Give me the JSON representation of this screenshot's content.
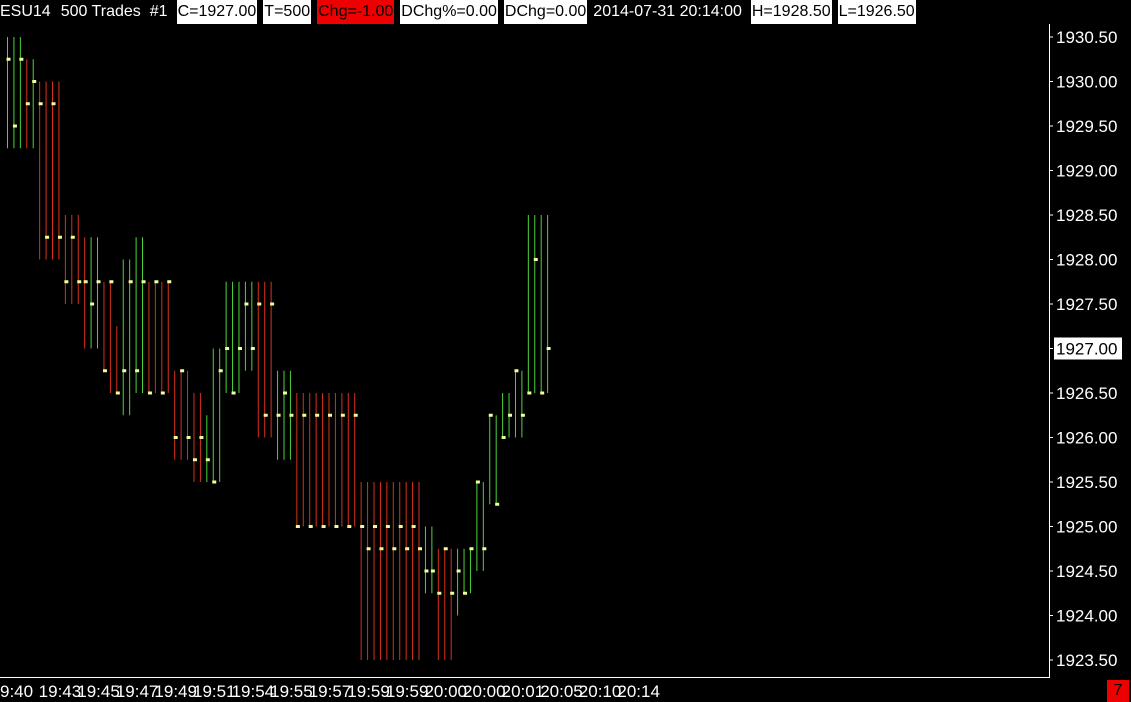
{
  "header": {
    "symbol": "ESU14",
    "bar_type": "500 Trades",
    "chart_number": "#1",
    "close": "C=1927.00",
    "trades": "T=500",
    "change": "Chg=-1.00",
    "daily_change_pct": "DChg%=0.00",
    "daily_change": "DChg=0.00",
    "datetime": "2014-07-31  20:14:00",
    "high": "H=1928.50",
    "low": "L=1926.50"
  },
  "counter": "7",
  "colors": {
    "background": "#000000",
    "up_bar": "#4cd43c",
    "down_bar": "#d8301a",
    "close_tick": "#f0ff9a",
    "price_box": "#ffffff",
    "alert_red": "#e00000"
  },
  "chart_data": {
    "type": "ohlc",
    "xlabel": "",
    "ylabel": "",
    "ylim": [
      1923.25,
      1930.75
    ],
    "y_ticks": [
      1930.5,
      1930.0,
      1929.5,
      1929.0,
      1928.5,
      1928.0,
      1927.5,
      1927.0,
      1926.5,
      1926.0,
      1925.5,
      1925.0,
      1924.5,
      1924.0,
      1923.5
    ],
    "y_tick_labels": [
      "1930.50",
      "1930.00",
      "1929.50",
      "1929.00",
      "1928.50",
      "1928.00",
      "1927.50",
      "1927.00",
      "1926.50",
      "1926.00",
      "1925.50",
      "1925.00",
      "1924.50",
      "1924.00",
      "1923.50"
    ],
    "current_price_label": "1927.00",
    "x_tick_labels": [
      {
        "bar": 0,
        "label": "9:40"
      },
      {
        "bar": 8,
        "label": "19:43"
      },
      {
        "bar": 14,
        "label": "19:45"
      },
      {
        "bar": 20,
        "label": "19:47"
      },
      {
        "bar": 26,
        "label": "19:49"
      },
      {
        "bar": 32,
        "label": "19:51"
      },
      {
        "bar": 38,
        "label": "19:54"
      },
      {
        "bar": 44,
        "label": "19:55"
      },
      {
        "bar": 50,
        "label": "19:57"
      },
      {
        "bar": 56,
        "label": "19:59"
      },
      {
        "bar": 62,
        "label": "19:59"
      },
      {
        "bar": 68,
        "label": "20:00"
      },
      {
        "bar": 74,
        "label": "20:00"
      },
      {
        "bar": 80,
        "label": "20:01"
      },
      {
        "bar": 86,
        "label": "20:05"
      },
      {
        "bar": 92,
        "label": "20:10"
      },
      {
        "bar": 98,
        "label": "20:14"
      }
    ],
    "bars": [
      {
        "h": 1930.5,
        "l": 1929.25,
        "c": 1930.25,
        "d": "up"
      },
      {
        "h": 1930.5,
        "l": 1929.25,
        "c": 1929.5,
        "d": "up"
      },
      {
        "h": 1930.5,
        "l": 1929.25,
        "c": 1930.25,
        "d": "up"
      },
      {
        "h": 1930.25,
        "l": 1929.25,
        "c": 1929.75,
        "d": "down"
      },
      {
        "h": 1930.25,
        "l": 1929.25,
        "c": 1930.0,
        "d": "up"
      },
      {
        "h": 1930.0,
        "l": 1928.0,
        "c": 1929.75,
        "d": "down"
      },
      {
        "h": 1930.0,
        "l": 1928.0,
        "c": 1928.25,
        "d": "down"
      },
      {
        "h": 1930.0,
        "l": 1928.0,
        "c": 1929.75,
        "d": "down"
      },
      {
        "h": 1930.0,
        "l": 1928.0,
        "c": 1928.25,
        "d": "down"
      },
      {
        "h": 1928.5,
        "l": 1927.5,
        "c": 1927.75,
        "d": "down"
      },
      {
        "h": 1928.5,
        "l": 1927.5,
        "c": 1928.25,
        "d": "down"
      },
      {
        "h": 1928.5,
        "l": 1927.5,
        "c": 1927.75,
        "d": "down"
      },
      {
        "h": 1928.25,
        "l": 1927.0,
        "c": 1927.75,
        "d": "down"
      },
      {
        "h": 1928.25,
        "l": 1927.0,
        "c": 1927.5,
        "d": "up"
      },
      {
        "h": 1928.25,
        "l": 1927.0,
        "c": 1927.75,
        "d": "up"
      },
      {
        "h": 1927.75,
        "l": 1926.75,
        "c": 1926.75,
        "d": "down"
      },
      {
        "h": 1927.75,
        "l": 1926.5,
        "c": 1927.75,
        "d": "down"
      },
      {
        "h": 1927.25,
        "l": 1926.5,
        "c": 1926.5,
        "d": "down"
      },
      {
        "h": 1928.0,
        "l": 1926.25,
        "c": 1926.75,
        "d": "up"
      },
      {
        "h": 1928.0,
        "l": 1926.25,
        "c": 1927.75,
        "d": "up"
      },
      {
        "h": 1928.25,
        "l": 1926.5,
        "c": 1926.75,
        "d": "up"
      },
      {
        "h": 1928.25,
        "l": 1926.5,
        "c": 1927.75,
        "d": "up"
      },
      {
        "h": 1927.75,
        "l": 1926.5,
        "c": 1926.5,
        "d": "down"
      },
      {
        "h": 1927.75,
        "l": 1926.5,
        "c": 1927.75,
        "d": "down"
      },
      {
        "h": 1927.75,
        "l": 1926.5,
        "c": 1926.5,
        "d": "down"
      },
      {
        "h": 1927.75,
        "l": 1926.5,
        "c": 1927.75,
        "d": "down"
      },
      {
        "h": 1926.75,
        "l": 1925.75,
        "c": 1926.0,
        "d": "down"
      },
      {
        "h": 1926.75,
        "l": 1925.75,
        "c": 1926.75,
        "d": "down"
      },
      {
        "h": 1926.75,
        "l": 1925.75,
        "c": 1926.0,
        "d": "down"
      },
      {
        "h": 1926.5,
        "l": 1925.5,
        "c": 1925.75,
        "d": "down"
      },
      {
        "h": 1926.5,
        "l": 1925.5,
        "c": 1926.0,
        "d": "down"
      },
      {
        "h": 1926.25,
        "l": 1925.5,
        "c": 1925.75,
        "d": "up"
      },
      {
        "h": 1927.0,
        "l": 1925.5,
        "c": 1925.5,
        "d": "up"
      },
      {
        "h": 1927.0,
        "l": 1925.5,
        "c": 1926.75,
        "d": "up"
      },
      {
        "h": 1927.75,
        "l": 1926.5,
        "c": 1927.0,
        "d": "up"
      },
      {
        "h": 1927.75,
        "l": 1926.5,
        "c": 1926.5,
        "d": "up"
      },
      {
        "h": 1927.75,
        "l": 1926.5,
        "c": 1927.0,
        "d": "up"
      },
      {
        "h": 1927.75,
        "l": 1926.75,
        "c": 1927.5,
        "d": "up"
      },
      {
        "h": 1927.75,
        "l": 1926.75,
        "c": 1927.0,
        "d": "up"
      },
      {
        "h": 1927.75,
        "l": 1926.0,
        "c": 1927.5,
        "d": "down"
      },
      {
        "h": 1927.75,
        "l": 1926.0,
        "c": 1926.25,
        "d": "down"
      },
      {
        "h": 1927.75,
        "l": 1926.0,
        "c": 1927.5,
        "d": "down"
      },
      {
        "h": 1926.75,
        "l": 1925.75,
        "c": 1926.25,
        "d": "up"
      },
      {
        "h": 1926.75,
        "l": 1925.75,
        "c": 1926.5,
        "d": "up"
      },
      {
        "h": 1926.75,
        "l": 1925.75,
        "c": 1926.25,
        "d": "up"
      },
      {
        "h": 1926.5,
        "l": 1925.0,
        "c": 1925.0,
        "d": "down"
      },
      {
        "h": 1926.5,
        "l": 1925.0,
        "c": 1926.25,
        "d": "down"
      },
      {
        "h": 1926.5,
        "l": 1925.0,
        "c": 1925.0,
        "d": "down"
      },
      {
        "h": 1926.5,
        "l": 1925.0,
        "c": 1926.25,
        "d": "down"
      },
      {
        "h": 1926.5,
        "l": 1925.0,
        "c": 1925.0,
        "d": "down"
      },
      {
        "h": 1926.5,
        "l": 1925.0,
        "c": 1926.25,
        "d": "down"
      },
      {
        "h": 1926.5,
        "l": 1925.0,
        "c": 1925.0,
        "d": "down"
      },
      {
        "h": 1926.5,
        "l": 1925.0,
        "c": 1926.25,
        "d": "down"
      },
      {
        "h": 1926.5,
        "l": 1925.0,
        "c": 1925.0,
        "d": "down"
      },
      {
        "h": 1926.5,
        "l": 1925.0,
        "c": 1926.25,
        "d": "down"
      },
      {
        "h": 1925.5,
        "l": 1923.5,
        "c": 1925.0,
        "d": "down"
      },
      {
        "h": 1925.5,
        "l": 1923.5,
        "c": 1924.75,
        "d": "down"
      },
      {
        "h": 1925.5,
        "l": 1923.5,
        "c": 1925.0,
        "d": "down"
      },
      {
        "h": 1925.5,
        "l": 1923.5,
        "c": 1924.75,
        "d": "down"
      },
      {
        "h": 1925.5,
        "l": 1923.5,
        "c": 1925.0,
        "d": "down"
      },
      {
        "h": 1925.5,
        "l": 1923.5,
        "c": 1924.75,
        "d": "down"
      },
      {
        "h": 1925.5,
        "l": 1923.5,
        "c": 1925.0,
        "d": "down"
      },
      {
        "h": 1925.5,
        "l": 1923.5,
        "c": 1924.75,
        "d": "down"
      },
      {
        "h": 1925.5,
        "l": 1923.5,
        "c": 1925.0,
        "d": "down"
      },
      {
        "h": 1925.5,
        "l": 1923.5,
        "c": 1924.75,
        "d": "down"
      },
      {
        "h": 1925.0,
        "l": 1924.25,
        "c": 1924.5,
        "d": "up"
      },
      {
        "h": 1925.0,
        "l": 1924.25,
        "c": 1924.5,
        "d": "up"
      },
      {
        "h": 1924.75,
        "l": 1923.5,
        "c": 1924.25,
        "d": "down"
      },
      {
        "h": 1924.75,
        "l": 1923.5,
        "c": 1924.75,
        "d": "down"
      },
      {
        "h": 1924.75,
        "l": 1923.5,
        "c": 1924.25,
        "d": "down"
      },
      {
        "h": 1924.75,
        "l": 1924.0,
        "c": 1924.5,
        "d": "up"
      },
      {
        "h": 1924.75,
        "l": 1924.25,
        "c": 1924.25,
        "d": "up"
      },
      {
        "h": 1924.75,
        "l": 1924.25,
        "c": 1924.75,
        "d": "up"
      },
      {
        "h": 1925.5,
        "l": 1924.5,
        "c": 1925.5,
        "d": "up"
      },
      {
        "h": 1925.5,
        "l": 1924.5,
        "c": 1924.75,
        "d": "up"
      },
      {
        "h": 1926.25,
        "l": 1925.25,
        "c": 1926.25,
        "d": "up"
      },
      {
        "h": 1926.25,
        "l": 1925.25,
        "c": 1925.25,
        "d": "up"
      },
      {
        "h": 1926.5,
        "l": 1926.0,
        "c": 1926.0,
        "d": "up"
      },
      {
        "h": 1926.5,
        "l": 1926.0,
        "c": 1926.25,
        "d": "up"
      },
      {
        "h": 1926.75,
        "l": 1926.0,
        "c": 1926.75,
        "d": "up"
      },
      {
        "h": 1926.75,
        "l": 1926.0,
        "c": 1926.25,
        "d": "up"
      },
      {
        "h": 1928.5,
        "l": 1926.5,
        "c": 1926.5,
        "d": "up"
      },
      {
        "h": 1928.5,
        "l": 1926.5,
        "c": 1928.0,
        "d": "up"
      },
      {
        "h": 1928.5,
        "l": 1926.5,
        "c": 1926.5,
        "d": "up"
      },
      {
        "h": 1928.5,
        "l": 1926.5,
        "c": 1927.0,
        "d": "up"
      }
    ]
  }
}
